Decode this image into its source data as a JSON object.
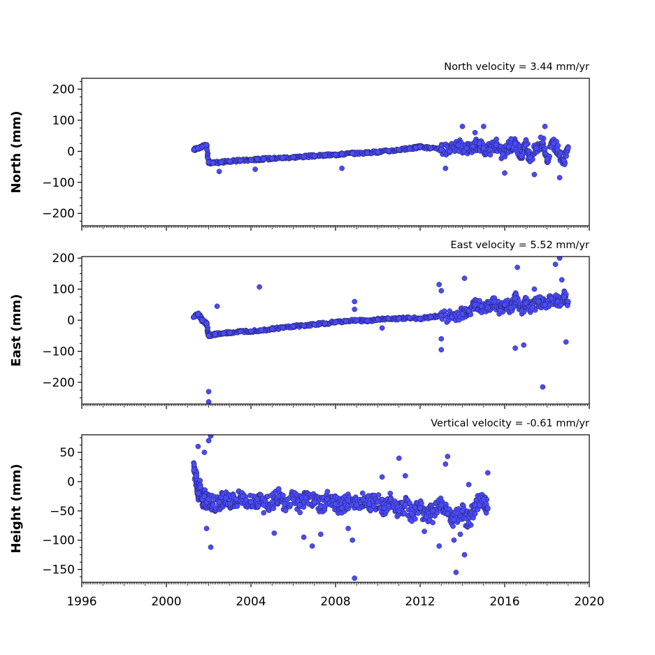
{
  "chart_data": [
    {
      "type": "scatter",
      "title": "North velocity = 3.44 mm/yr",
      "xlabel": "",
      "ylabel": "North (mm)",
      "xlim": [
        1996,
        2020
      ],
      "ylim": [
        -240,
        235
      ],
      "yticks": [
        -200,
        -100,
        0,
        100,
        200
      ],
      "marker_color": "#4a4aff",
      "marker_edge": "#202050",
      "grid": false,
      "series": [
        {
          "x": [
            2001.3,
            2001.5,
            2001.7,
            2001.9,
            2002.0,
            2002.2,
            2002.6,
            2003.0,
            2003.5,
            2004.0,
            2004.3,
            2004.6,
            2005.0,
            2005.5,
            2006.0,
            2006.5,
            2007.0,
            2007.5,
            2008.0,
            2008.3,
            2008.8,
            2009.5,
            2010.0,
            2010.5,
            2011.0,
            2011.5,
            2011.8,
            2012.0,
            2012.5,
            2013.0,
            2013.4,
            2013.8,
            2014.2,
            2014.5,
            2014.8,
            2015.0,
            2015.3,
            2015.6,
            2015.9,
            2016.2,
            2016.5,
            2016.8,
            2017.0,
            2017.2,
            2017.5,
            2017.8,
            2018.0,
            2018.3,
            2018.5,
            2018.8,
            2019.0,
            2002.5,
            2004.2,
            2008.3,
            2013.2,
            2014.0,
            2015.0,
            2016.3,
            2017.4,
            2017.9,
            2018.6,
            2016.0,
            2014.6,
            2017.7
          ],
          "y": [
            5,
            10,
            15,
            20,
            -35,
            -38,
            -35,
            -32,
            -30,
            -28,
            -26,
            -25,
            -23,
            -21,
            -19,
            -17,
            -15,
            -13,
            -11,
            -9,
            -7,
            -5,
            -2,
            1,
            5,
            8,
            12,
            15,
            10,
            5,
            0,
            20,
            10,
            15,
            25,
            10,
            5,
            20,
            -10,
            15,
            25,
            -15,
            20,
            -20,
            10,
            30,
            -25,
            25,
            5,
            -30,
            10,
            -65,
            -58,
            -55,
            -55,
            80,
            80,
            40,
            -75,
            80,
            -85,
            -70,
            60,
            45
          ]
        }
      ]
    },
    {
      "type": "scatter",
      "title": "East velocity = 5.52 mm/yr",
      "xlabel": "",
      "ylabel": "East (mm)",
      "xlim": [
        1996,
        2020
      ],
      "ylim": [
        -270,
        205
      ],
      "yticks": [
        -200,
        -100,
        0,
        100,
        200
      ],
      "marker_color": "#4a4aff",
      "marker_edge": "#202050",
      "grid": false,
      "series": [
        {
          "x": [
            2001.3,
            2001.5,
            2001.7,
            2001.9,
            2002.0,
            2002.3,
            2002.7,
            2003.0,
            2003.5,
            2004.0,
            2004.5,
            2005.0,
            2005.5,
            2006.0,
            2006.5,
            2007.0,
            2007.5,
            2008.0,
            2008.5,
            2009.0,
            2009.5,
            2010.0,
            2010.5,
            2011.0,
            2011.5,
            2012.0,
            2012.5,
            2013.0,
            2013.5,
            2014.0,
            2014.3,
            2014.6,
            2014.9,
            2015.2,
            2015.5,
            2015.8,
            2016.0,
            2016.3,
            2016.5,
            2016.8,
            2017.0,
            2017.3,
            2017.6,
            2017.9,
            2018.2,
            2018.5,
            2018.8,
            2019.0,
            2002.0,
            2002.0,
            2002.4,
            2004.4,
            2008.9,
            2008.9,
            2010.2,
            2012.9,
            2013.0,
            2013.0,
            2013.0,
            2014.1,
            2016.6,
            2016.5,
            2016.9,
            2017.4,
            2017.8,
            2018.4,
            2018.6,
            2018.7,
            2018.9
          ],
          "y": [
            10,
            20,
            0,
            -10,
            -50,
            -45,
            -43,
            -40,
            -37,
            -35,
            -32,
            -28,
            -24,
            -20,
            -17,
            -14,
            -10,
            -6,
            -3,
            0,
            -2,
            2,
            5,
            5,
            8,
            5,
            10,
            15,
            10,
            20,
            30,
            50,
            45,
            40,
            60,
            30,
            50,
            40,
            70,
            30,
            55,
            40,
            60,
            50,
            70,
            60,
            75,
            60,
            -230,
            -263,
            45,
            107,
            60,
            35,
            -25,
            115,
            95,
            -60,
            -95,
            135,
            170,
            -90,
            -80,
            100,
            -215,
            180,
            200,
            130,
            -70
          ]
        }
      ]
    },
    {
      "type": "scatter",
      "title": "Vertical velocity = -0.61 mm/yr",
      "xlabel": "",
      "ylabel": "Height (mm)",
      "xlim": [
        1996,
        2020
      ],
      "ylim": [
        -172,
        80
      ],
      "yticks": [
        -150,
        -100,
        -50,
        0,
        50
      ],
      "xticks": [
        1996,
        2000,
        2004,
        2008,
        2012,
        2016,
        2020
      ],
      "marker_color": "#4a4aff",
      "marker_edge": "#202050",
      "grid": false,
      "series": [
        {
          "x": [
            2001.3,
            2001.4,
            2001.5,
            2001.6,
            2001.7,
            2001.8,
            2001.9,
            2002.0,
            2002.2,
            2002.5,
            2002.8,
            2003.0,
            2003.3,
            2003.6,
            2004.0,
            2004.3,
            2004.6,
            2005.0,
            2005.3,
            2005.6,
            2006.0,
            2006.3,
            2006.6,
            2007.0,
            2007.3,
            2007.6,
            2008.0,
            2008.3,
            2008.6,
            2009.0,
            2009.3,
            2009.6,
            2010.0,
            2010.3,
            2010.6,
            2011.0,
            2011.3,
            2011.6,
            2012.0,
            2012.3,
            2012.6,
            2013.0,
            2013.3,
            2013.6,
            2014.0,
            2014.3,
            2014.6,
            2015.0,
            2015.2,
            2001.5,
            2001.8,
            2002.0,
            2002.1,
            2001.9,
            2002.1,
            2005.1,
            2006.5,
            2006.9,
            2007.3,
            2008.6,
            2008.8,
            2010.2,
            2011.0,
            2011.3,
            2012.6,
            2012.9,
            2013.2,
            2013.3,
            2013.6,
            2013.9,
            2014.1,
            2014.3,
            2014.6,
            2014.8,
            2015.2,
            2013.7,
            2012.2,
            2008.9
          ],
          "y": [
            20,
            10,
            -20,
            -10,
            -30,
            -25,
            -35,
            -30,
            -40,
            -35,
            -28,
            -38,
            -30,
            -25,
            -35,
            -30,
            -40,
            -35,
            -25,
            -38,
            -30,
            -40,
            -28,
            -35,
            -42,
            -30,
            -38,
            -45,
            -32,
            -40,
            -30,
            -38,
            -35,
            -45,
            -30,
            -50,
            -40,
            -55,
            -45,
            -60,
            -50,
            -40,
            -55,
            -65,
            -50,
            -70,
            -40,
            -30,
            -45,
            60,
            50,
            70,
            78,
            -80,
            -112,
            -88,
            -95,
            -110,
            -90,
            -80,
            -100,
            8,
            40,
            10,
            -70,
            -110,
            30,
            43,
            -100,
            -90,
            -125,
            -5,
            -55,
            -40,
            15,
            -155,
            -85,
            -165
          ]
        }
      ]
    }
  ]
}
